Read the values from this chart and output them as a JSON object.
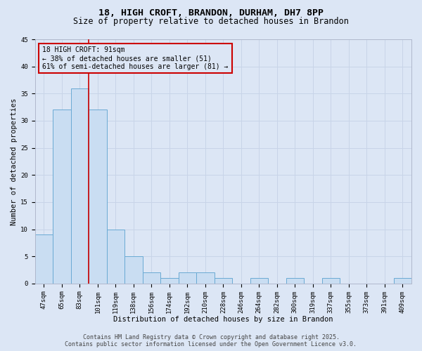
{
  "title_line1": "18, HIGH CROFT, BRANDON, DURHAM, DH7 8PP",
  "title_line2": "Size of property relative to detached houses in Brandon",
  "xlabel": "Distribution of detached houses by size in Brandon",
  "ylabel": "Number of detached properties",
  "categories": [
    "47sqm",
    "65sqm",
    "83sqm",
    "101sqm",
    "119sqm",
    "138sqm",
    "156sqm",
    "174sqm",
    "192sqm",
    "210sqm",
    "228sqm",
    "246sqm",
    "264sqm",
    "282sqm",
    "300sqm",
    "319sqm",
    "337sqm",
    "355sqm",
    "373sqm",
    "391sqm",
    "409sqm"
  ],
  "values": [
    9,
    32,
    36,
    32,
    10,
    5,
    2,
    1,
    2,
    2,
    1,
    0,
    1,
    0,
    1,
    0,
    1,
    0,
    0,
    0,
    1
  ],
  "bar_color": "#c9ddf2",
  "bar_edge_color": "#6aaad4",
  "grid_color": "#c8d4e8",
  "background_color": "#dce6f5",
  "vline_x": 2.5,
  "vline_color": "#cc0000",
  "annotation_text": "18 HIGH CROFT: 91sqm\n← 38% of detached houses are smaller (51)\n61% of semi-detached houses are larger (81) →",
  "annotation_box_color": "#cc0000",
  "ylim": [
    0,
    45
  ],
  "yticks": [
    0,
    5,
    10,
    15,
    20,
    25,
    30,
    35,
    40,
    45
  ],
  "footer_text": "Contains HM Land Registry data © Crown copyright and database right 2025.\nContains public sector information licensed under the Open Government Licence v3.0.",
  "title_fontsize": 9.5,
  "subtitle_fontsize": 8.5,
  "axis_label_fontsize": 7.5,
  "tick_fontsize": 6.5,
  "annotation_fontsize": 7,
  "footer_fontsize": 6
}
